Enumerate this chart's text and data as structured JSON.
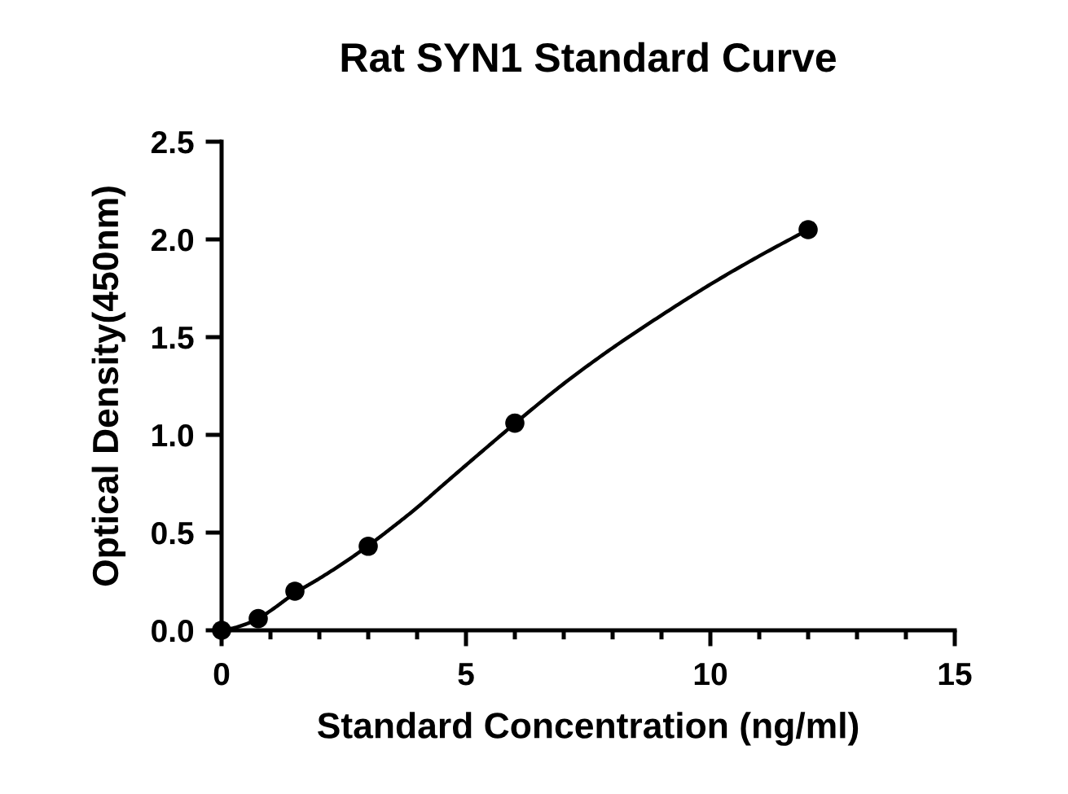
{
  "chart_data": {
    "type": "scatter",
    "title": "Rat SYN1 Standard Curve",
    "xlabel": "Standard Concentration (ng/ml)",
    "ylabel": "Optical Density(450nm)",
    "series": [
      {
        "color": "#000000",
        "marker": "circle",
        "x": [
          0,
          0.75,
          1.5,
          3,
          6,
          12
        ],
        "values": [
          0,
          0.06,
          0.2,
          0.43,
          1.06,
          2.05
        ]
      },
      {
        "type": "line",
        "color": "#000000",
        "marker": "none",
        "line_style": "solid",
        "x": [
          0,
          0.25,
          0.5,
          0.75,
          1,
          1.5,
          2,
          2.5,
          3,
          3.5,
          4,
          4.5,
          5,
          5.5,
          6,
          7,
          8,
          9,
          10,
          11,
          12
        ],
        "values": [
          0,
          0.012,
          0.032,
          0.06,
          0.1,
          0.19,
          0.265,
          0.345,
          0.433,
          0.528,
          0.628,
          0.737,
          0.845,
          0.952,
          1.058,
          1.262,
          1.445,
          1.612,
          1.77,
          1.915,
          2.05
        ]
      }
    ],
    "xlim": [
      0,
      15
    ],
    "ylim": [
      0,
      2.5
    ],
    "xticks": [
      0,
      {
        "value": 1,
        "label": null
      },
      {
        "value": 2,
        "label": null
      },
      {
        "value": 3,
        "label": null
      },
      {
        "value": 4,
        "label": null
      },
      5,
      {
        "value": 6,
        "label": null
      },
      {
        "value": 7,
        "label": null
      },
      {
        "value": 8,
        "label": null
      },
      {
        "value": 9,
        "label": null
      },
      10,
      {
        "value": 11,
        "label": null
      },
      {
        "value": 12,
        "label": null
      },
      {
        "value": 13,
        "label": null
      },
      {
        "value": 14,
        "label": null
      },
      15
    ],
    "yticks": [
      {
        "value": 0,
        "label": "0.0"
      },
      0.5,
      {
        "value": 1,
        "label": "1.0"
      },
      1.5,
      {
        "value": 2,
        "label": "2.0"
      },
      2.5
    ]
  }
}
